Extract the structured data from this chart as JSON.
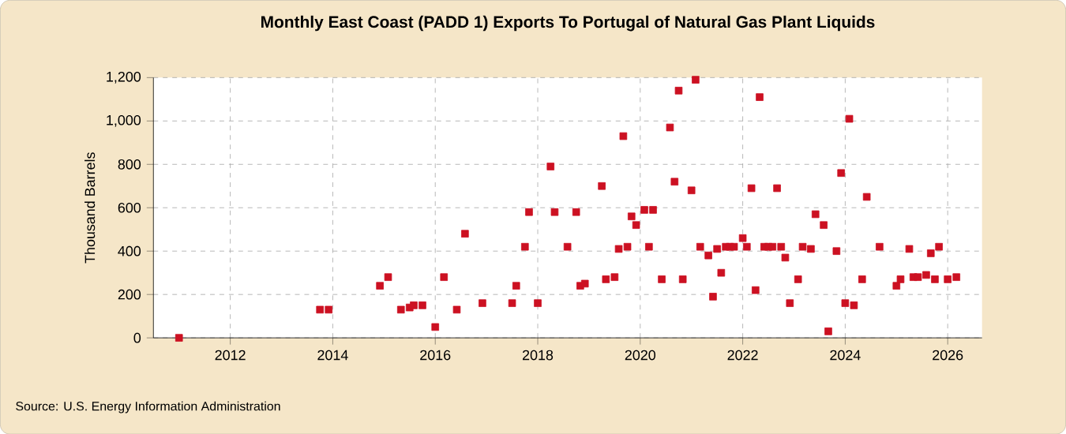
{
  "chart_data": {
    "type": "scatter",
    "title": "Monthly East Coast (PADD 1) Exports To Portugal of Natural Gas Plant Liquids",
    "ylabel": "Thousand Barrels",
    "annotations": [
      "Source: U.S. Energy Information Administration"
    ],
    "x": [
      "2011-01",
      "2013-10",
      "2013-12",
      "2014-12",
      "2015-02",
      "2015-05",
      "2015-07",
      "2015-08",
      "2015-10",
      "2016-01",
      "2016-03",
      "2016-06",
      "2016-08",
      "2016-12",
      "2017-07",
      "2017-08",
      "2017-10",
      "2017-11",
      "2018-01",
      "2018-04",
      "2018-05",
      "2018-08",
      "2018-10",
      "2018-11",
      "2018-12",
      "2019-04",
      "2019-05",
      "2019-07",
      "2019-08",
      "2019-09",
      "2019-10",
      "2019-11",
      "2019-12",
      "2020-02",
      "2020-03",
      "2020-04",
      "2020-06",
      "2020-08",
      "2020-09",
      "2020-10",
      "2020-11",
      "2021-01",
      "2021-02",
      "2021-03",
      "2021-05",
      "2021-06",
      "2021-07",
      "2021-08",
      "2021-09",
      "2021-10",
      "2021-11",
      "2022-01",
      "2022-02",
      "2022-03",
      "2022-04",
      "2022-05",
      "2022-06",
      "2022-07",
      "2022-08",
      "2022-09",
      "2022-10",
      "2022-11",
      "2022-12",
      "2023-02",
      "2023-03",
      "2023-05",
      "2023-06",
      "2023-08",
      "2023-09",
      "2023-11",
      "2023-12",
      "2024-01",
      "2024-02",
      "2024-03",
      "2024-05",
      "2024-06",
      "2024-09",
      "2025-01",
      "2025-02",
      "2025-04",
      "2025-05",
      "2025-06",
      "2025-08",
      "2025-09",
      "2025-10",
      "2025-11",
      "2026-01",
      "2026-03"
    ],
    "series": [
      {
        "color": "#cc1122",
        "values": [
          0,
          130,
          130,
          240,
          280,
          130,
          140,
          150,
          150,
          50,
          280,
          130,
          480,
          160,
          160,
          240,
          420,
          580,
          160,
          790,
          580,
          420,
          580,
          240,
          250,
          700,
          270,
          280,
          410,
          930,
          420,
          560,
          520,
          590,
          420,
          590,
          270,
          970,
          720,
          1140,
          270,
          680,
          1190,
          420,
          380,
          190,
          410,
          300,
          420,
          420,
          420,
          460,
          420,
          690,
          220,
          1110,
          420,
          420,
          420,
          690,
          420,
          370,
          160,
          270,
          420,
          410,
          570,
          520,
          30,
          400,
          760,
          160,
          1010,
          150,
          270,
          650,
          420,
          240,
          270,
          410,
          280,
          280,
          290,
          390,
          270,
          420,
          270,
          280
        ]
      }
    ],
    "xlim": [
      "2010-07",
      "2026-09"
    ],
    "xticks": [
      "2012",
      "2014",
      "2016",
      "2018",
      "2020",
      "2022",
      "2024",
      "2026"
    ],
    "ylim": [
      0,
      1200
    ],
    "yticks": [
      0,
      200,
      400,
      600,
      800,
      {
        "value": 1000,
        "label": "1,000"
      },
      {
        "value": 1200,
        "label": "1,200"
      }
    ],
    "grid": true,
    "marker": "square"
  }
}
